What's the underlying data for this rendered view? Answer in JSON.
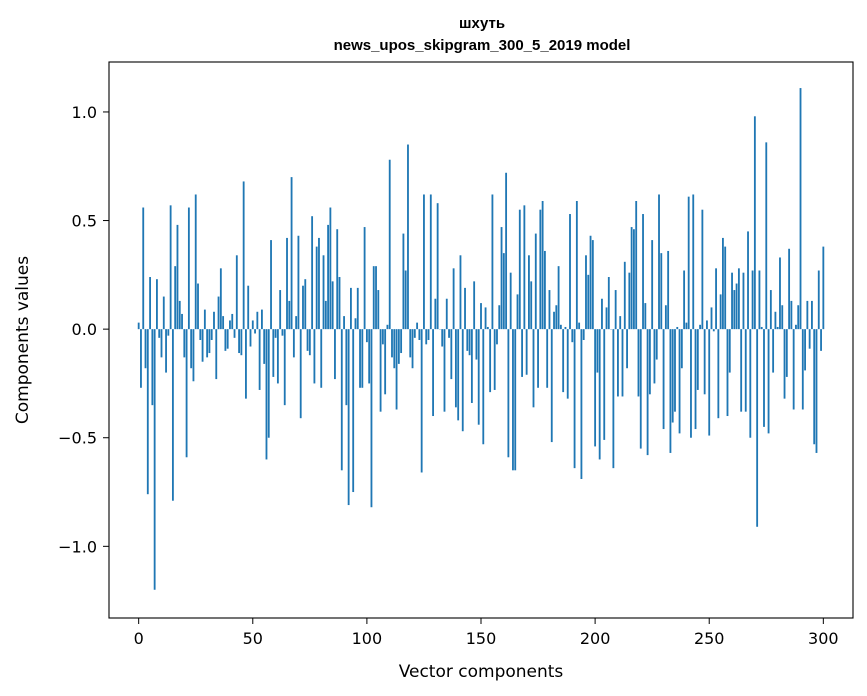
{
  "chart_data": {
    "type": "bar",
    "title": "шхуть",
    "subtitle": "news_upos_skipgram_300_5_2019 model",
    "xlabel": "Vector components",
    "ylabel": "Components values",
    "xlim": [
      -13,
      313
    ],
    "ylim": [
      -1.33,
      1.23
    ],
    "xticks": [
      0,
      50,
      100,
      150,
      200,
      250,
      300
    ],
    "yticks": [
      1.0,
      0.5,
      0.0,
      -0.5,
      -1.0
    ],
    "ytick_labels": [
      "1.0",
      "0.5",
      "0.0",
      "−0.5",
      "−1.0"
    ],
    "bar_color": "#1f77b4",
    "values": [
      0.03,
      -0.27,
      0.56,
      -0.18,
      -0.76,
      0.24,
      -0.35,
      -1.2,
      0.23,
      -0.04,
      -0.13,
      0.15,
      -0.2,
      -0.03,
      0.57,
      -0.79,
      0.29,
      0.48,
      0.13,
      0.07,
      -0.13,
      -0.59,
      0.56,
      -0.18,
      -0.24,
      0.62,
      0.21,
      -0.05,
      -0.15,
      0.09,
      -0.13,
      -0.11,
      -0.05,
      0.08,
      -0.23,
      0.15,
      0.28,
      0.06,
      -0.1,
      -0.09,
      0.04,
      0.07,
      -0.04,
      0.34,
      -0.11,
      -0.12,
      0.68,
      -0.32,
      0.2,
      -0.08,
      0.04,
      -0.02,
      0.08,
      -0.28,
      0.09,
      -0.16,
      -0.6,
      -0.5,
      0.41,
      -0.22,
      -0.04,
      -0.25,
      0.18,
      -0.03,
      -0.35,
      0.42,
      0.13,
      0.7,
      -0.13,
      0.06,
      0.43,
      -0.41,
      0.2,
      0.23,
      -0.1,
      -0.12,
      0.52,
      -0.25,
      0.38,
      0.42,
      -0.27,
      0.34,
      0.13,
      0.48,
      0.56,
      0.22,
      -0.23,
      0.46,
      0.24,
      -0.65,
      0.06,
      -0.35,
      -0.81,
      0.19,
      -0.75,
      0.05,
      0.19,
      -0.27,
      -0.27,
      0.47,
      -0.06,
      -0.25,
      -0.82,
      0.29,
      0.29,
      0.18,
      -0.38,
      -0.07,
      -0.3,
      0.02,
      0.78,
      -0.13,
      -0.18,
      -0.37,
      -0.16,
      -0.11,
      0.44,
      0.27,
      0.85,
      -0.13,
      -0.18,
      -0.04,
      0.03,
      -0.05,
      -0.66,
      0.62,
      -0.07,
      -0.05,
      0.62,
      -0.4,
      0.14,
      0.58,
      0.0,
      -0.08,
      -0.38,
      0.14,
      -0.04,
      -0.23,
      0.28,
      -0.36,
      -0.42,
      0.34,
      -0.47,
      0.19,
      -0.1,
      -0.12,
      -0.34,
      0.22,
      -0.14,
      -0.44,
      0.12,
      -0.53,
      0.1,
      0.01,
      -0.29,
      0.62,
      -0.28,
      -0.07,
      0.11,
      0.47,
      0.35,
      0.72,
      -0.59,
      0.26,
      -0.65,
      -0.65,
      0.16,
      0.55,
      -0.22,
      0.57,
      -0.21,
      0.34,
      0.22,
      -0.36,
      0.44,
      -0.27,
      0.55,
      0.59,
      0.36,
      -0.27,
      0.18,
      -0.52,
      0.08,
      0.11,
      0.29,
      0.02,
      -0.29,
      0.01,
      -0.32,
      0.53,
      -0.06,
      -0.64,
      0.59,
      0.03,
      -0.69,
      -0.05,
      0.34,
      0.25,
      0.43,
      0.41,
      -0.54,
      -0.2,
      -0.6,
      0.14,
      -0.51,
      0.1,
      0.24,
      0.0,
      -0.64,
      0.18,
      -0.31,
      0.06,
      -0.31,
      0.31,
      -0.18,
      0.26,
      0.47,
      0.46,
      0.59,
      -0.31,
      -0.55,
      0.53,
      0.12,
      -0.58,
      -0.3,
      0.41,
      -0.25,
      -0.14,
      0.62,
      0.35,
      -0.46,
      0.11,
      0.36,
      -0.57,
      -0.43,
      -0.38,
      0.01,
      -0.48,
      -0.18,
      0.27,
      0.03,
      0.61,
      -0.5,
      0.62,
      -0.46,
      -0.28,
      0.02,
      0.55,
      -0.3,
      0.04,
      -0.49,
      0.1,
      -0.01,
      0.28,
      -0.41,
      0.16,
      0.42,
      0.38,
      -0.4,
      -0.2,
      0.26,
      0.18,
      0.21,
      0.28,
      -0.38,
      0.26,
      -0.38,
      0.45,
      -0.5,
      0.27,
      0.98,
      -0.91,
      0.27,
      0.01,
      -0.45,
      0.86,
      -0.48,
      0.18,
      -0.2,
      0.08,
      0.01,
      0.33,
      0.11,
      -0.32,
      -0.22,
      0.37,
      0.13,
      -0.37,
      0.02,
      0.11,
      1.11,
      -0.37,
      -0.19,
      0.13,
      -0.09,
      0.13,
      -0.53,
      -0.57,
      0.27,
      -0.1,
      0.38
    ]
  }
}
